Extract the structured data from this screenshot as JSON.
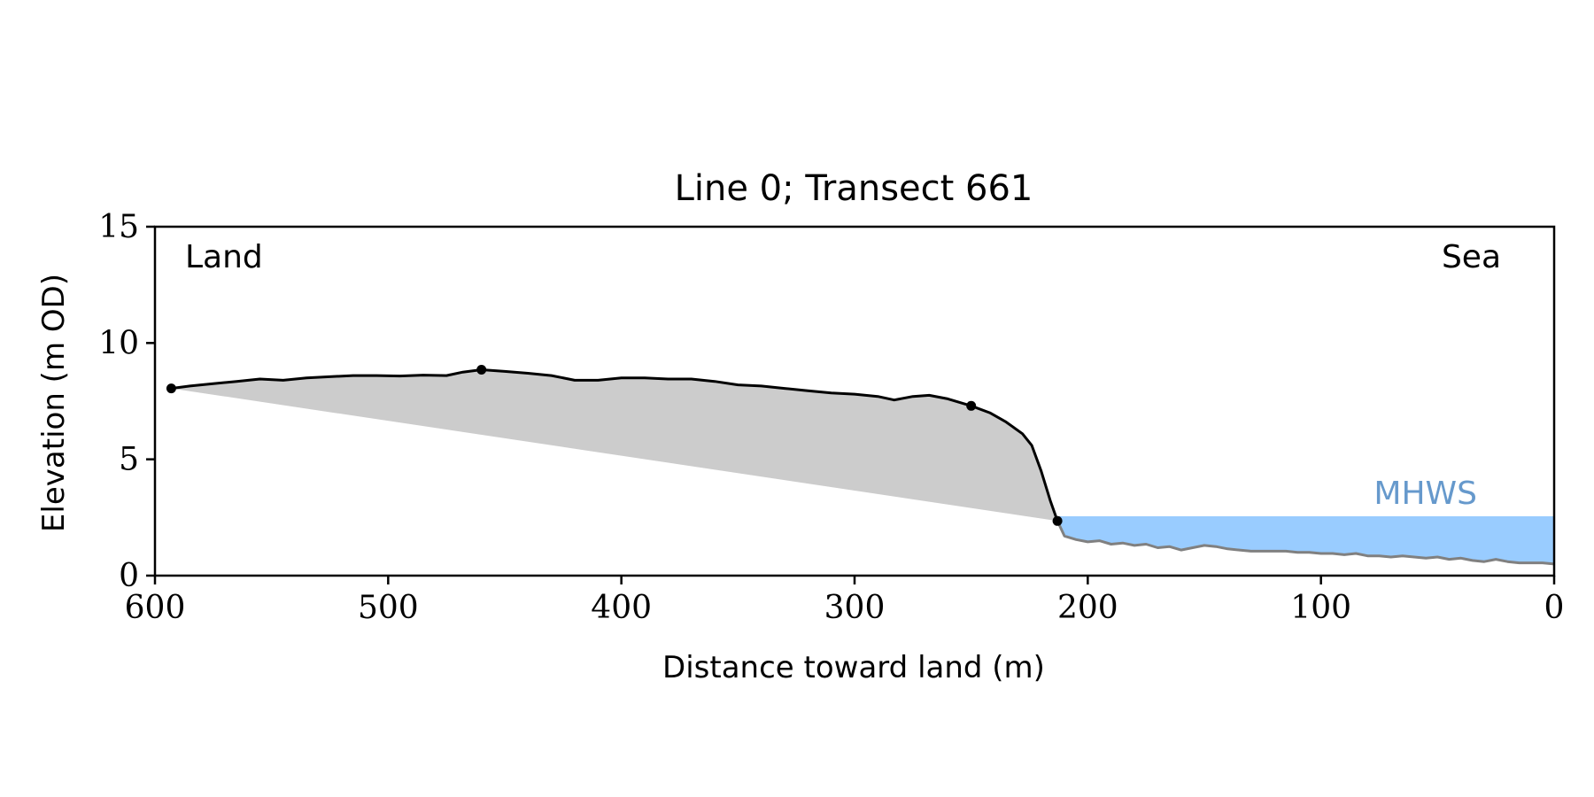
{
  "chart_data": {
    "type": "area",
    "title": "Line 0; Transect 661",
    "xlabel": "Distance toward land (m)",
    "ylabel": "Elevation (m OD)",
    "xlim": [
      600,
      0
    ],
    "ylim": [
      0,
      15
    ],
    "x_reversed": true,
    "xticks": [
      600,
      500,
      400,
      300,
      200,
      100,
      0
    ],
    "yticks": [
      0,
      5,
      10,
      15
    ],
    "annotations": {
      "land": "Land",
      "sea": "Sea",
      "mhws": "MHWS"
    },
    "mhws_level": 2.55,
    "colors": {
      "profile": "#000000",
      "sea_profile": "#808080",
      "fill": "#cccccc",
      "water": "#99ccff",
      "mhws_text": "#6699cc"
    },
    "grid": false,
    "series": [
      {
        "role": "land-profile",
        "points": [
          [
            593,
            8.05
          ],
          [
            585,
            8.15
          ],
          [
            575,
            8.25
          ],
          [
            565,
            8.35
          ],
          [
            555,
            8.45
          ],
          [
            545,
            8.4
          ],
          [
            535,
            8.5
          ],
          [
            525,
            8.55
          ],
          [
            515,
            8.6
          ],
          [
            505,
            8.6
          ],
          [
            495,
            8.58
          ],
          [
            485,
            8.62
          ],
          [
            475,
            8.6
          ],
          [
            468,
            8.75
          ],
          [
            460,
            8.85
          ],
          [
            450,
            8.78
          ],
          [
            440,
            8.7
          ],
          [
            430,
            8.6
          ],
          [
            420,
            8.4
          ],
          [
            410,
            8.4
          ],
          [
            400,
            8.5
          ],
          [
            390,
            8.5
          ],
          [
            380,
            8.45
          ],
          [
            370,
            8.45
          ],
          [
            360,
            8.35
          ],
          [
            350,
            8.2
          ],
          [
            340,
            8.15
          ],
          [
            330,
            8.05
          ],
          [
            320,
            7.95
          ],
          [
            310,
            7.85
          ],
          [
            300,
            7.8
          ],
          [
            290,
            7.7
          ],
          [
            283,
            7.55
          ],
          [
            275,
            7.7
          ],
          [
            268,
            7.75
          ],
          [
            260,
            7.6
          ],
          [
            250,
            7.3
          ],
          [
            242,
            7.0
          ],
          [
            235,
            6.6
          ],
          [
            228,
            6.1
          ],
          [
            224,
            5.6
          ],
          [
            220,
            4.5
          ],
          [
            216,
            3.2
          ],
          [
            213,
            2.35
          ]
        ]
      },
      {
        "role": "seabed-profile",
        "points": [
          [
            213,
            2.35
          ],
          [
            210,
            1.7
          ],
          [
            205,
            1.55
          ],
          [
            200,
            1.45
          ],
          [
            195,
            1.5
          ],
          [
            190,
            1.35
          ],
          [
            185,
            1.4
          ],
          [
            180,
            1.3
          ],
          [
            175,
            1.35
          ],
          [
            170,
            1.2
          ],
          [
            165,
            1.25
          ],
          [
            160,
            1.1
          ],
          [
            155,
            1.2
          ],
          [
            150,
            1.3
          ],
          [
            145,
            1.25
          ],
          [
            140,
            1.15
          ],
          [
            135,
            1.1
          ],
          [
            130,
            1.05
          ],
          [
            125,
            1.05
          ],
          [
            120,
            1.05
          ],
          [
            115,
            1.05
          ],
          [
            110,
            1.0
          ],
          [
            105,
            1.0
          ],
          [
            100,
            0.95
          ],
          [
            95,
            0.95
          ],
          [
            90,
            0.9
          ],
          [
            85,
            0.95
          ],
          [
            80,
            0.85
          ],
          [
            75,
            0.85
          ],
          [
            70,
            0.8
          ],
          [
            65,
            0.85
          ],
          [
            60,
            0.8
          ],
          [
            55,
            0.75
          ],
          [
            50,
            0.8
          ],
          [
            45,
            0.7
          ],
          [
            40,
            0.75
          ],
          [
            35,
            0.65
          ],
          [
            30,
            0.6
          ],
          [
            25,
            0.7
          ],
          [
            20,
            0.6
          ],
          [
            15,
            0.55
          ],
          [
            10,
            0.55
          ],
          [
            5,
            0.55
          ],
          [
            0,
            0.5
          ]
        ]
      }
    ],
    "markers": [
      [
        593,
        8.05
      ],
      [
        460,
        8.85
      ],
      [
        250,
        7.3
      ],
      [
        213,
        2.35
      ]
    ]
  }
}
